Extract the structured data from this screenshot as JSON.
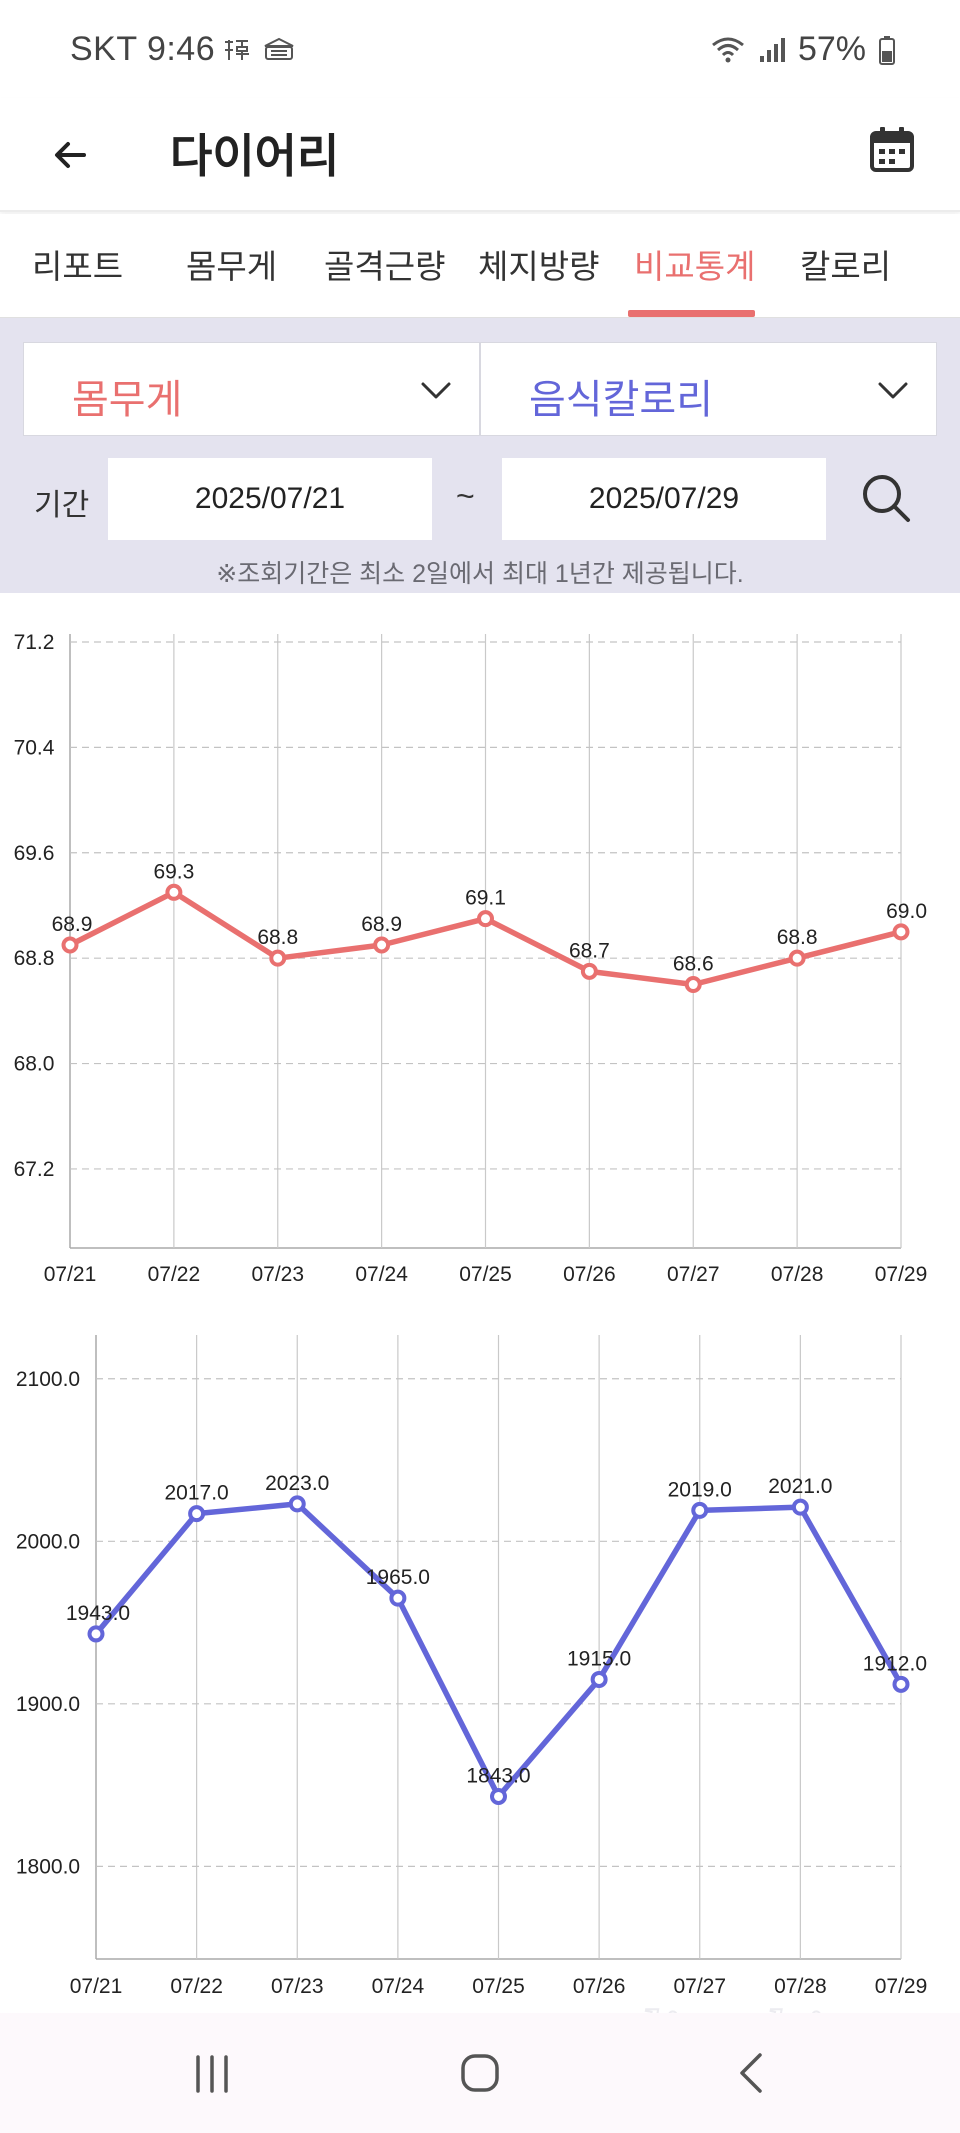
{
  "status_bar": {
    "carrier_time": "SKT 9:46",
    "battery": "57%",
    "icons": [
      "hanja-icon",
      "bank-app-icon",
      "wifi-icon",
      "signal-icon",
      "battery-icon"
    ]
  },
  "header": {
    "title": "다이어리",
    "back_icon": "arrow-left-icon",
    "calendar_icon": "calendar-icon"
  },
  "tabs": [
    {
      "label": "리포트",
      "active": false
    },
    {
      "label": "몸무게",
      "active": false
    },
    {
      "label": "골격근량",
      "active": false
    },
    {
      "label": "체지방량",
      "active": false
    },
    {
      "label": "비교통계",
      "active": true
    },
    {
      "label": "칼로리",
      "active": false
    }
  ],
  "filters": {
    "left_select": "몸무게",
    "right_select": "음식칼로리",
    "period_label": "기간",
    "start_date": "2025/07/21",
    "end_date": "2025/07/29",
    "separator": "~",
    "notice": "※조회기간은 최소 2일에서 최대 1년간 제공됩니다."
  },
  "colors": {
    "accent_red": "#e9706f",
    "accent_blue": "#6366d9",
    "panel_bg": "#e4e3ef"
  },
  "chart_data": [
    {
      "type": "line",
      "series_name": "몸무게",
      "categories": [
        "07/21",
        "07/22",
        "07/23",
        "07/24",
        "07/25",
        "07/26",
        "07/27",
        "07/28",
        "07/29"
      ],
      "values": [
        68.9,
        69.3,
        68.8,
        68.9,
        69.1,
        68.7,
        68.6,
        68.8,
        69.0
      ],
      "value_labels": [
        "68.9",
        "69.3",
        "68.8",
        "68.9",
        "69.1",
        "68.7",
        "68.6",
        "68.8",
        "69.0"
      ],
      "y_ticks": [
        67.2,
        68.0,
        68.8,
        69.6,
        70.4,
        71.2
      ],
      "y_tick_labels": [
        "67.2",
        "68.0",
        "68.8",
        "69.6",
        "70.4",
        "71.2"
      ],
      "ylim": [
        66.6,
        71.2
      ],
      "color": "#e9706f",
      "grid": true
    },
    {
      "type": "line",
      "series_name": "음식칼로리",
      "categories": [
        "07/21",
        "07/22",
        "07/23",
        "07/24",
        "07/25",
        "07/26",
        "07/27",
        "07/28",
        "07/29"
      ],
      "values": [
        1943.0,
        2017.0,
        2023.0,
        1965.0,
        1843.0,
        1915.0,
        2019.0,
        2021.0,
        1912.0
      ],
      "value_labels": [
        "1943.0",
        "2017.0",
        "2023.0",
        "1965.0",
        "1843.0",
        "1915.0",
        "2019.0",
        "2021.0",
        "1912.0"
      ],
      "y_ticks": [
        1800.0,
        1900.0,
        2000.0,
        2100.0
      ],
      "y_tick_labels": [
        "1800.0",
        "1900.0",
        "2000.0",
        "2100.0"
      ],
      "ylim": [
        1743,
        2122
      ],
      "color": "#6366d9",
      "grid": true
    }
  ],
  "nav_bar": {
    "buttons": [
      "recent-apps-icon",
      "home-icon",
      "back-icon"
    ]
  },
  "watermark": "dietshin.com"
}
